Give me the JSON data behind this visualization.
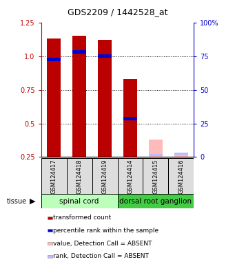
{
  "title": "GDS2209 / 1442528_at",
  "samples": [
    "GSM124417",
    "GSM124418",
    "GSM124419",
    "GSM124414",
    "GSM124415",
    "GSM124416"
  ],
  "sc_color": "#bbffbb",
  "drg_color": "#44cc44",
  "red_values": [
    1.13,
    1.15,
    1.12,
    0.83,
    null,
    null
  ],
  "blue_values": [
    0.975,
    1.03,
    1.0,
    0.535,
    null,
    null
  ],
  "absent_red_values": [
    null,
    null,
    null,
    null,
    0.38,
    0.27
  ],
  "absent_blue_values": [
    null,
    null,
    null,
    null,
    0.265,
    0.275
  ],
  "detection_calls": [
    "P",
    "P",
    "P",
    "P",
    "A",
    "A"
  ],
  "ylim_lo": 0.25,
  "ylim_hi": 1.25,
  "y2lim_lo": 0,
  "y2lim_hi": 100,
  "yticks": [
    0.25,
    0.5,
    0.75,
    1.0,
    1.25
  ],
  "y2ticks": [
    0,
    25,
    50,
    75,
    100
  ],
  "red_color": "#bb0000",
  "blue_color": "#0000cc",
  "absent_red_color": "#ffbbbb",
  "absent_blue_color": "#bbbbff",
  "bar_width": 0.55,
  "blue_bar_height": 0.025,
  "absent_blue_bar_height": 0.012,
  "grid_yticks": [
    0.5,
    0.75,
    1.0
  ],
  "legend": [
    {
      "color": "#bb0000",
      "label": "transformed count"
    },
    {
      "color": "#0000cc",
      "label": "percentile rank within the sample"
    },
    {
      "color": "#ffbbbb",
      "label": "value, Detection Call = ABSENT"
    },
    {
      "color": "#bbbbff",
      "label": "rank, Detection Call = ABSENT"
    }
  ],
  "tissue_label": "tissue",
  "tissue_arrow": "▶",
  "sc_label": "spinal cord",
  "drg_label": "dorsal root ganglion",
  "label_fontsize": 7,
  "tick_fontsize": 7,
  "title_fontsize": 9,
  "legend_fontsize": 6.5,
  "sample_fontsize": 6,
  "tissue_fontsize": 7.5
}
